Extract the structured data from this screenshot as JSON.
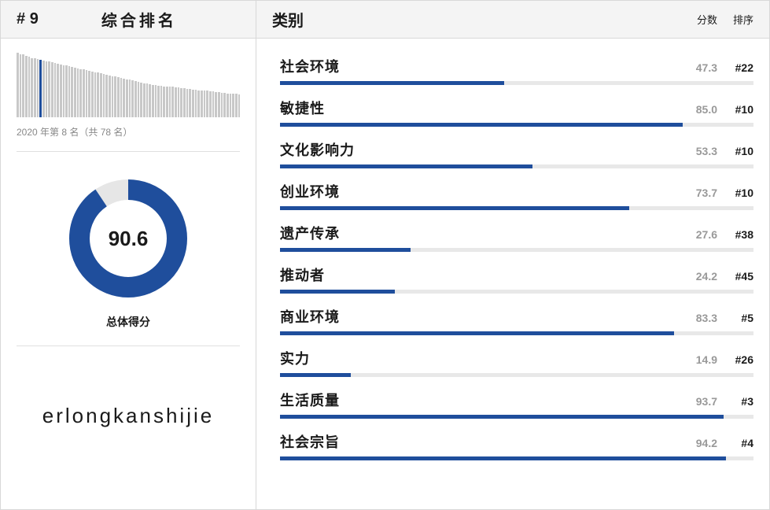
{
  "left": {
    "rank_prefix": "# ",
    "rank_number": "9",
    "title": "综合排名",
    "bars": {
      "count": 78,
      "highlight_index": 8,
      "heights": [
        100,
        98,
        97,
        95,
        94,
        92,
        91,
        90,
        89,
        88,
        87,
        86,
        85,
        84,
        83,
        82,
        81,
        80,
        79,
        78,
        77,
        76,
        75,
        74,
        73,
        72,
        71,
        70,
        69,
        68,
        67,
        66,
        65,
        64,
        63,
        62,
        61,
        60,
        59,
        58,
        57,
        56,
        55,
        54,
        53,
        52,
        51,
        50,
        50,
        49,
        49,
        48,
        48,
        47,
        47,
        46,
        46,
        45,
        45,
        44,
        44,
        43,
        43,
        42,
        42,
        41,
        41,
        40,
        40,
        39,
        39,
        38,
        38,
        37,
        37,
        36,
        36,
        35
      ],
      "bar_color": "#c8c8c8",
      "highlight_color": "#1f4e9c"
    },
    "prev_rank_text": "2020 年第 8 名（共 78 名）",
    "donut": {
      "value": 90.6,
      "display": "90.6",
      "max": 100,
      "fill_color": "#1f4e9c",
      "track_color": "#e6e6e6",
      "stroke_width": 26,
      "radius": 62,
      "size": 160
    },
    "donut_label": "总体得分",
    "brand": "erlongkanshijie"
  },
  "right": {
    "header_title": "类别",
    "header_score": "分数",
    "header_rank": "排序",
    "bar_color": "#1f4e9c",
    "track_color": "#e8e8e8",
    "categories": [
      {
        "name": "社会环境",
        "score": 47.3,
        "score_display": "47.3",
        "rank": "#22"
      },
      {
        "name": "敏捷性",
        "score": 85.0,
        "score_display": "85.0",
        "rank": "#10"
      },
      {
        "name": "文化影响力",
        "score": 53.3,
        "score_display": "53.3",
        "rank": "#10"
      },
      {
        "name": "创业环境",
        "score": 73.7,
        "score_display": "73.7",
        "rank": "#10"
      },
      {
        "name": "遗产传承",
        "score": 27.6,
        "score_display": "27.6",
        "rank": "#38"
      },
      {
        "name": "推动者",
        "score": 24.2,
        "score_display": "24.2",
        "rank": "#45"
      },
      {
        "name": "商业环境",
        "score": 83.3,
        "score_display": "83.3",
        "rank": "#5"
      },
      {
        "name": "实力",
        "score": 14.9,
        "score_display": "14.9",
        "rank": "#26"
      },
      {
        "name": "生活质量",
        "score": 93.7,
        "score_display": "93.7",
        "rank": "#3"
      },
      {
        "name": "社会宗旨",
        "score": 94.2,
        "score_display": "94.2",
        "rank": "#4"
      }
    ]
  }
}
